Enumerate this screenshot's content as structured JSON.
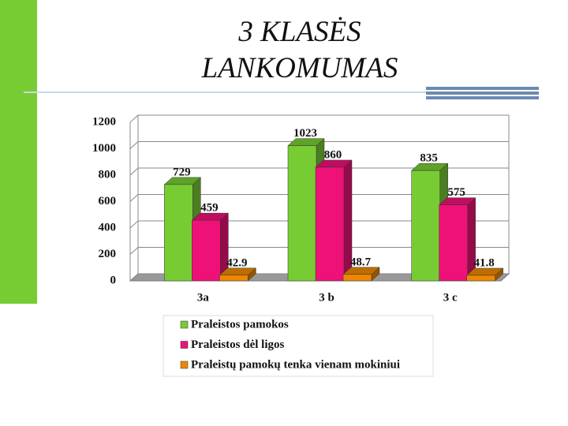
{
  "chart_data": {
    "type": "bar3d",
    "title": "3 KLASĖS LANKOMUMAS",
    "categories": [
      "3a",
      "3 b",
      "3 c"
    ],
    "series": [
      {
        "name": "Praleistos pamokos",
        "color": "#77cc33",
        "values": [
          729,
          1023,
          835
        ]
      },
      {
        "name": "Praleistos dėl ligos",
        "color": "#ee1177",
        "values": [
          459,
          860,
          575
        ]
      },
      {
        "name": "Praleistų pamokų tenka vienam mokiniui",
        "color": "#ee8800",
        "values": [
          42.9,
          48.7,
          41.8
        ]
      }
    ],
    "ylim": [
      0,
      1200
    ],
    "yticks": [
      0,
      200,
      400,
      600,
      800,
      1000,
      1200
    ],
    "grid": true,
    "legend": "bottom"
  }
}
